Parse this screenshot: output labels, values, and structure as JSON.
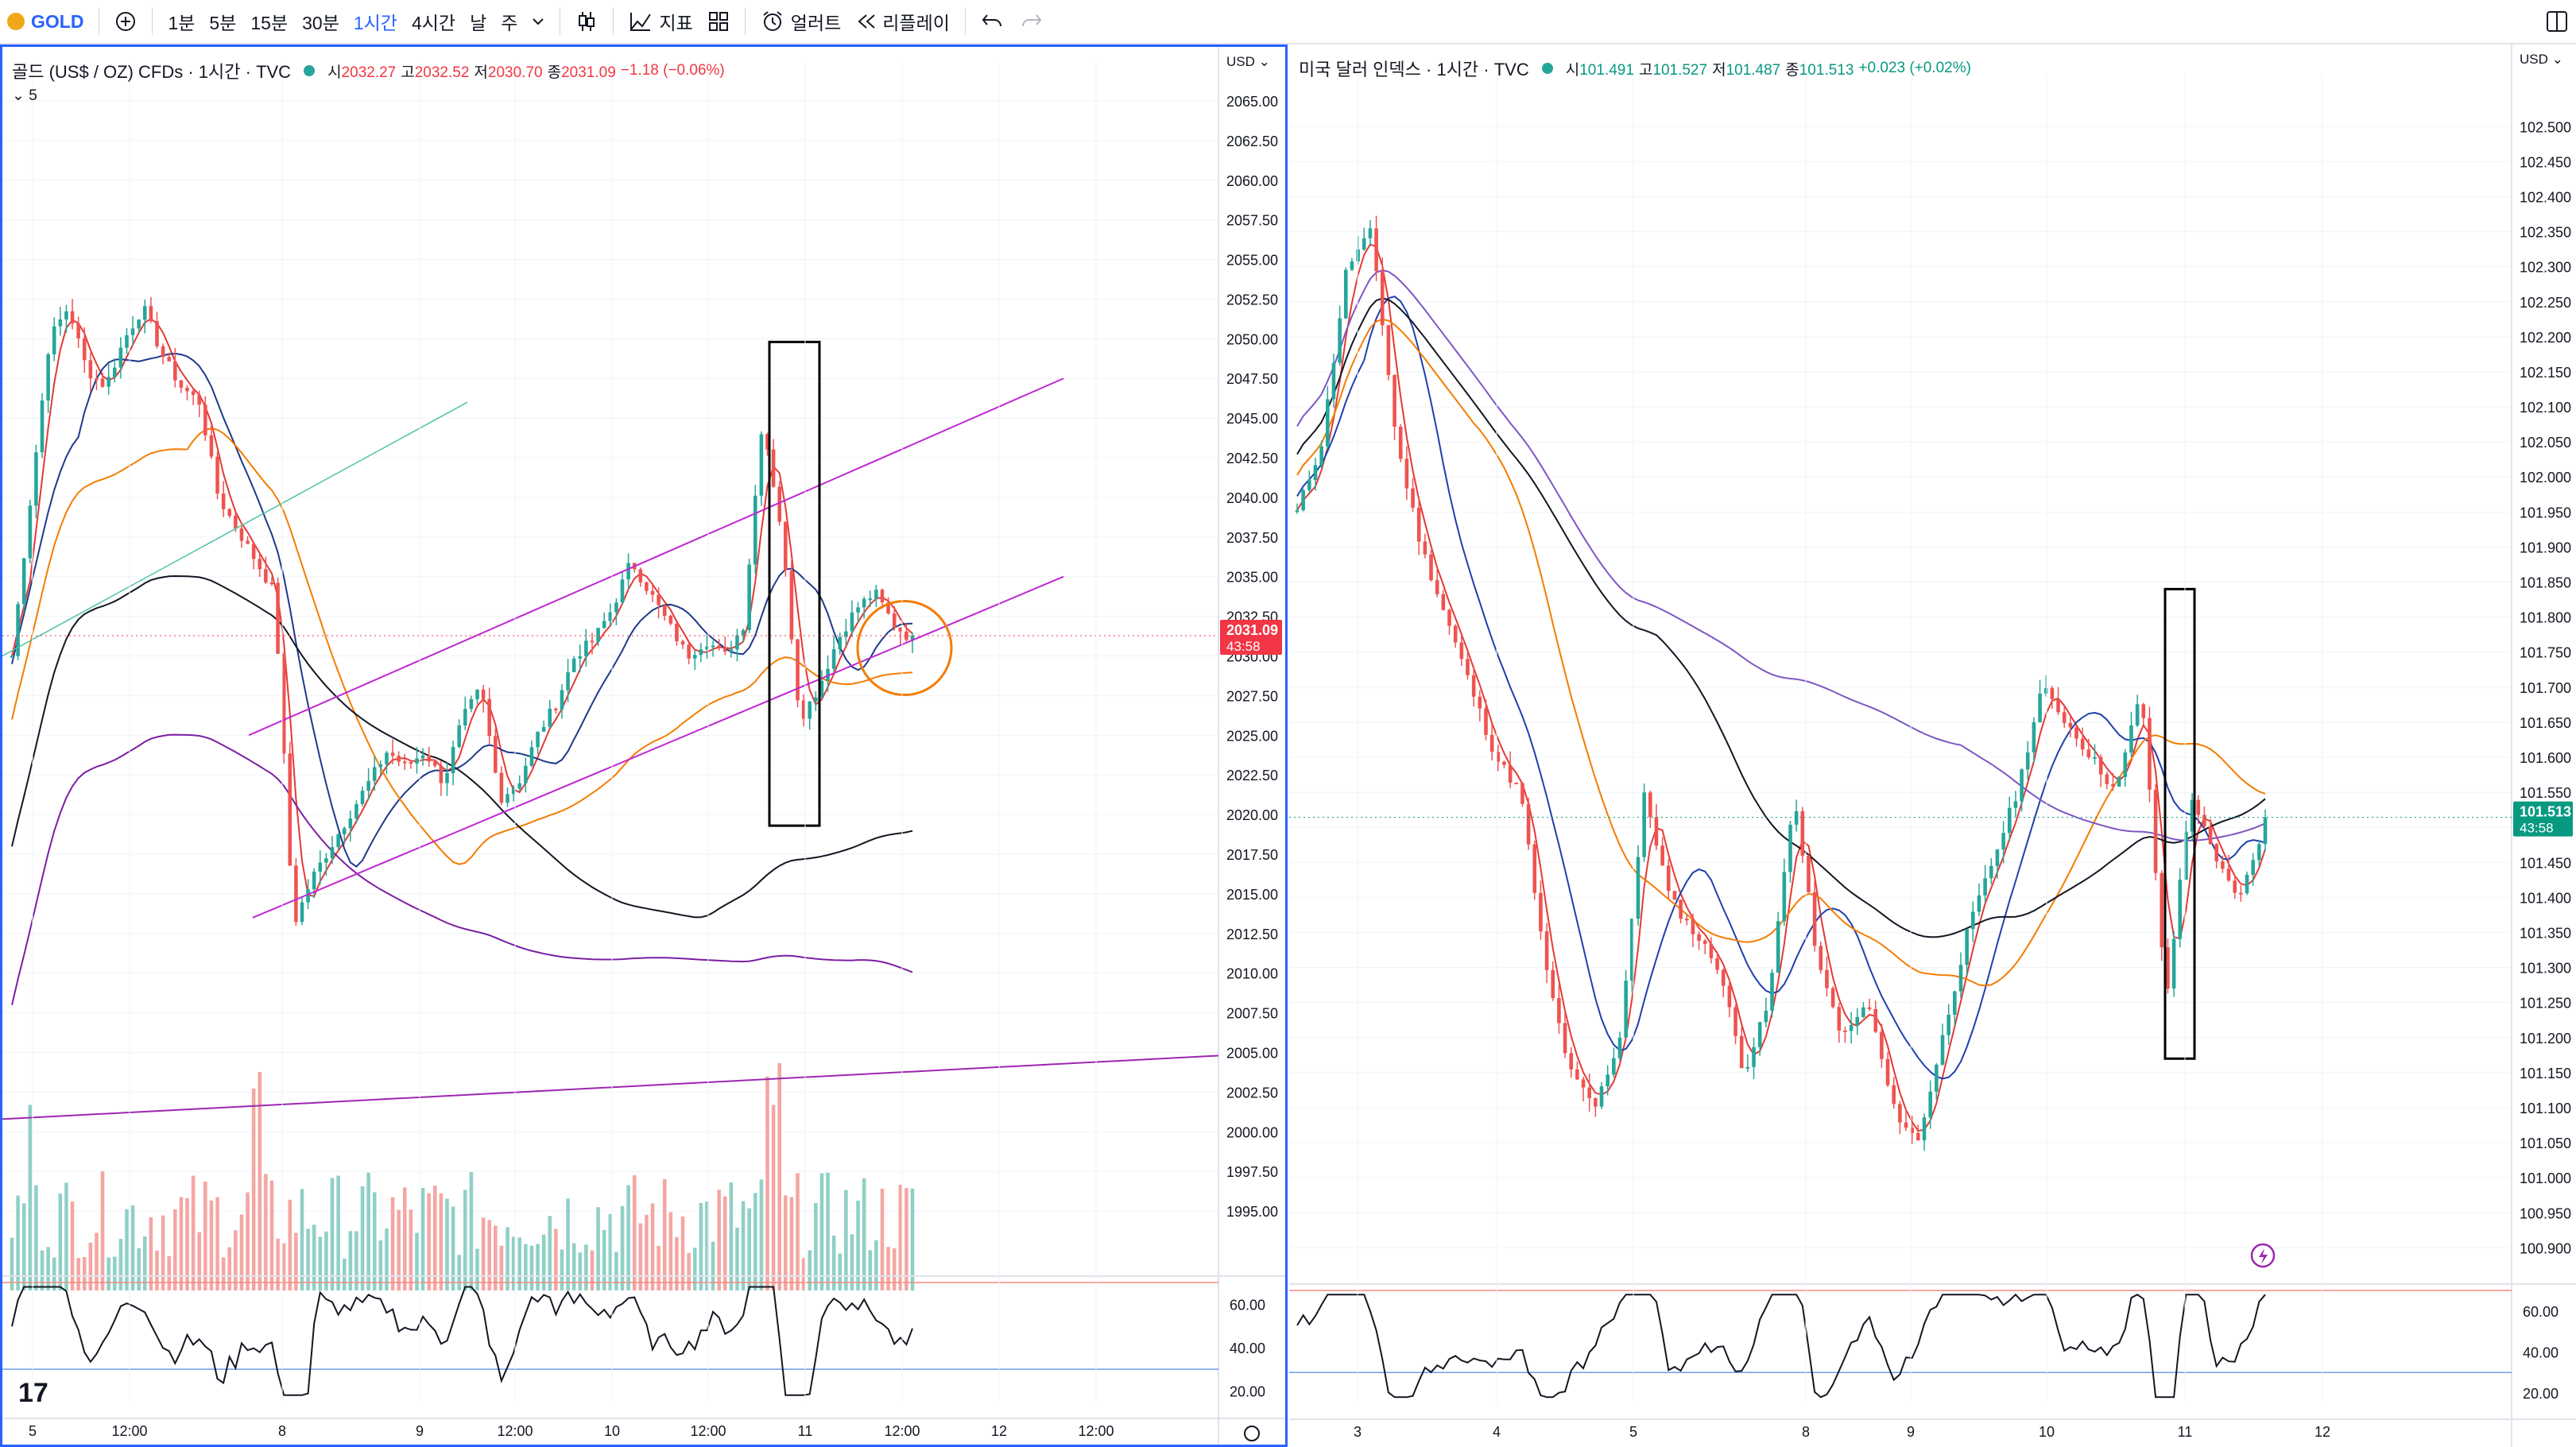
{
  "toolbar": {
    "symbol": "GOLD",
    "intervals": [
      "1분",
      "5분",
      "15분",
      "30분",
      "1시간",
      "4시간",
      "날",
      "주"
    ],
    "active_interval": "1시간",
    "indicators_label": "지표",
    "alert_label": "얼러트",
    "replay_label": "리플레이"
  },
  "left": {
    "title": "골드 (US$ / OZ) CFDs · 1시간 · TVC",
    "open_label": "시",
    "open": "2032.27",
    "high_label": "고",
    "high": "2032.52",
    "low_label": "저",
    "low": "2030.70",
    "close_label": "종",
    "close": "2031.09",
    "change": "−1.18 (−0.06%)",
    "sub_count": "5",
    "currency": "USD",
    "price_tag": "2031.09",
    "countdown": "43:58",
    "price_ticks": [
      "2065.00",
      "2062.50",
      "2060.00",
      "2057.50",
      "2055.00",
      "2052.50",
      "2050.00",
      "2047.50",
      "2045.00",
      "2042.50",
      "2040.00",
      "2037.50",
      "2035.00",
      "2032.50",
      "2030.00",
      "2027.50",
      "2025.00",
      "2022.50",
      "2020.00",
      "2017.50",
      "2015.00",
      "2012.50",
      "2010.00",
      "2007.50",
      "2005.00",
      "2002.50",
      "2000.00",
      "1997.50",
      "1995.00"
    ],
    "osc_ticks": [
      "60.00",
      "40.00",
      "20.00"
    ],
    "time_ticks": [
      "5",
      "12:00",
      "8",
      "9",
      "12:00",
      "10",
      "12:00",
      "11",
      "12:00",
      "12",
      "12:00"
    ],
    "colors": {
      "up": "#26a69a",
      "down": "#ef5350",
      "tag": "#f23645"
    }
  },
  "right": {
    "title": "미국 달러 인덱스 · 1시간 · TVC",
    "open_label": "시",
    "open": "101.491",
    "high_label": "고",
    "high": "101.527",
    "low_label": "저",
    "low": "101.487",
    "close_label": "종",
    "close": "101.513",
    "change": "+0.023 (+0.02%)",
    "currency": "USD",
    "price_tag": "101.513",
    "countdown": "43:58",
    "price_ticks": [
      "102.500",
      "102.450",
      "102.400",
      "102.350",
      "102.300",
      "102.250",
      "102.200",
      "102.150",
      "102.100",
      "102.050",
      "102.000",
      "101.950",
      "101.900",
      "101.850",
      "101.800",
      "101.750",
      "101.700",
      "101.650",
      "101.600",
      "101.550",
      "101.500",
      "101.450",
      "101.400",
      "101.350",
      "101.300",
      "101.250",
      "101.200",
      "101.150",
      "101.100",
      "101.050",
      "101.000",
      "100.950",
      "100.900"
    ],
    "osc_ticks": [
      "60.00",
      "40.00",
      "20.00"
    ],
    "time_ticks": [
      "3",
      "4",
      "5",
      "8",
      "9",
      "10",
      "11",
      "12"
    ],
    "colors": {
      "up": "#26a69a",
      "down": "#ef5350",
      "tag": "#089981"
    }
  },
  "chart_data": [
    {
      "type": "candlestick",
      "title": "골드 (US$ / OZ) CFDs · 1시간 · TVC",
      "ylim": [
        1993,
        2066
      ],
      "y_axis_position": "right",
      "closes_approx": [
        2030,
        2040,
        2050,
        2052,
        2048,
        2047,
        2050,
        2052,
        2049,
        2047,
        2046,
        2040,
        2038,
        2036,
        2034,
        2013,
        2016,
        2018,
        2020,
        2022,
        2024,
        2023,
        2024,
        2022,
        2026,
        2028,
        2021,
        2022,
        2025,
        2027,
        2030,
        2031,
        2033,
        2036,
        2034,
        2032,
        2030,
        2031,
        2030,
        2032,
        2045,
        2038,
        2026,
        2028,
        2031,
        2033,
        2034,
        2032,
        2031
      ],
      "annotations": [
        "ascending channel",
        "black rectangle near 11",
        "orange circle at last price"
      ],
      "oscillator_ylim": [
        15,
        70
      ],
      "oscillator_levels": [
        70,
        30
      ]
    },
    {
      "type": "candlestick",
      "title": "미국 달러 인덱스 · 1시간 · TVC",
      "ylim": [
        100.88,
        102.54
      ],
      "y_axis_position": "right",
      "closes_approx": [
        101.95,
        102.05,
        102.3,
        102.35,
        102.05,
        101.9,
        101.8,
        101.7,
        101.6,
        101.55,
        101.3,
        101.15,
        101.1,
        101.2,
        101.55,
        101.4,
        101.35,
        101.3,
        101.15,
        101.25,
        101.55,
        101.3,
        101.2,
        101.25,
        101.1,
        101.05,
        101.2,
        101.35,
        101.45,
        101.55,
        101.7,
        101.65,
        101.6,
        101.55,
        101.7,
        101.25,
        101.55,
        101.45,
        101.4,
        101.51
      ],
      "annotations": [
        "black rectangle near 11"
      ],
      "oscillator_ylim": [
        15,
        70
      ],
      "oscillator_levels": [
        70,
        30
      ]
    }
  ]
}
